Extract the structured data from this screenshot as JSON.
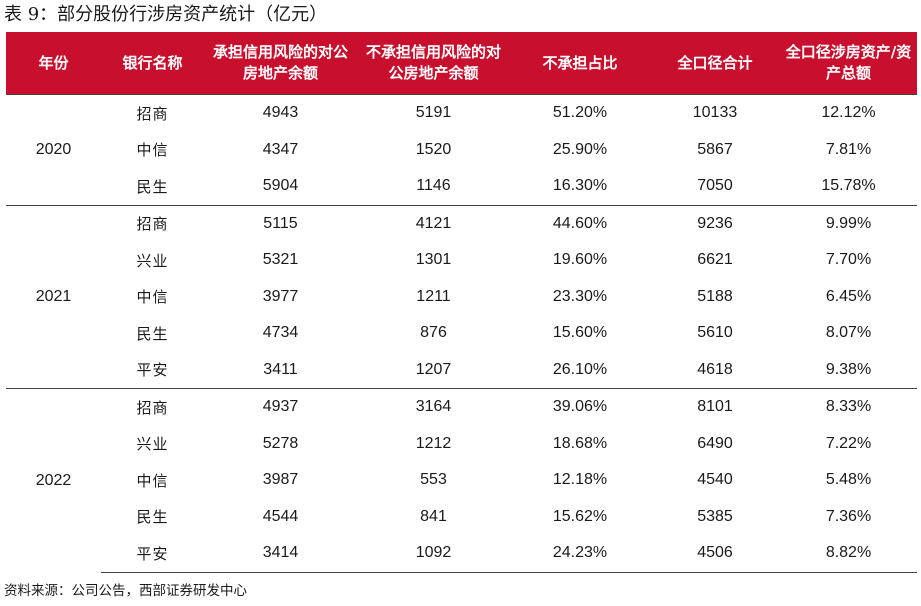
{
  "title": "表 9：部分股份行涉房资产统计（亿元）",
  "headers": {
    "year": "年份",
    "bank": "银行名称",
    "credit_risk": "承担信用风险的对公房地产余额",
    "no_credit_risk": "不承担信用风险的对公房地产余额",
    "no_risk_ratio": "不承担占比",
    "total": "全口径合计",
    "share": "全口径涉房资产/资产总额"
  },
  "groups": [
    {
      "year": "2020",
      "rows": [
        {
          "bank": "招商",
          "credit_risk": "4943",
          "no_credit_risk": "5191",
          "no_risk_ratio": "51.20%",
          "total": "10133",
          "share": "12.12%"
        },
        {
          "bank": "中信",
          "credit_risk": "4347",
          "no_credit_risk": "1520",
          "no_risk_ratio": "25.90%",
          "total": "5867",
          "share": "7.81%"
        },
        {
          "bank": "民生",
          "credit_risk": "5904",
          "no_credit_risk": "1146",
          "no_risk_ratio": "16.30%",
          "total": "7050",
          "share": "15.78%"
        }
      ]
    },
    {
      "year": "2021",
      "rows": [
        {
          "bank": "招商",
          "credit_risk": "5115",
          "no_credit_risk": "4121",
          "no_risk_ratio": "44.60%",
          "total": "9236",
          "share": "9.99%"
        },
        {
          "bank": "兴业",
          "credit_risk": "5321",
          "no_credit_risk": "1301",
          "no_risk_ratio": "19.60%",
          "total": "6621",
          "share": "7.70%"
        },
        {
          "bank": "中信",
          "credit_risk": "3977",
          "no_credit_risk": "1211",
          "no_risk_ratio": "23.30%",
          "total": "5188",
          "share": "6.45%"
        },
        {
          "bank": "民生",
          "credit_risk": "4734",
          "no_credit_risk": "876",
          "no_risk_ratio": "15.60%",
          "total": "5610",
          "share": "8.07%"
        },
        {
          "bank": "平安",
          "credit_risk": "3411",
          "no_credit_risk": "1207",
          "no_risk_ratio": "26.10%",
          "total": "4618",
          "share": "9.38%"
        }
      ]
    },
    {
      "year": "2022",
      "rows": [
        {
          "bank": "招商",
          "credit_risk": "4937",
          "no_credit_risk": "3164",
          "no_risk_ratio": "39.06%",
          "total": "8101",
          "share": "8.33%"
        },
        {
          "bank": "兴业",
          "credit_risk": "5278",
          "no_credit_risk": "1212",
          "no_risk_ratio": "18.68%",
          "total": "6490",
          "share": "7.22%"
        },
        {
          "bank": "中信",
          "credit_risk": "3987",
          "no_credit_risk": "553",
          "no_risk_ratio": "12.18%",
          "total": "4540",
          "share": "5.48%"
        },
        {
          "bank": "民生",
          "credit_risk": "4544",
          "no_credit_risk": "841",
          "no_risk_ratio": "15.62%",
          "total": "5385",
          "share": "7.36%"
        },
        {
          "bank": "平安",
          "credit_risk": "3414",
          "no_credit_risk": "1092",
          "no_risk_ratio": "24.23%",
          "total": "4506",
          "share": "8.82%"
        }
      ]
    }
  ],
  "source": "资料来源：公司公告，西部证券研发中心",
  "colors": {
    "header_bg": "#c8102e",
    "header_text": "#ffffff",
    "rule": "#444444"
  }
}
